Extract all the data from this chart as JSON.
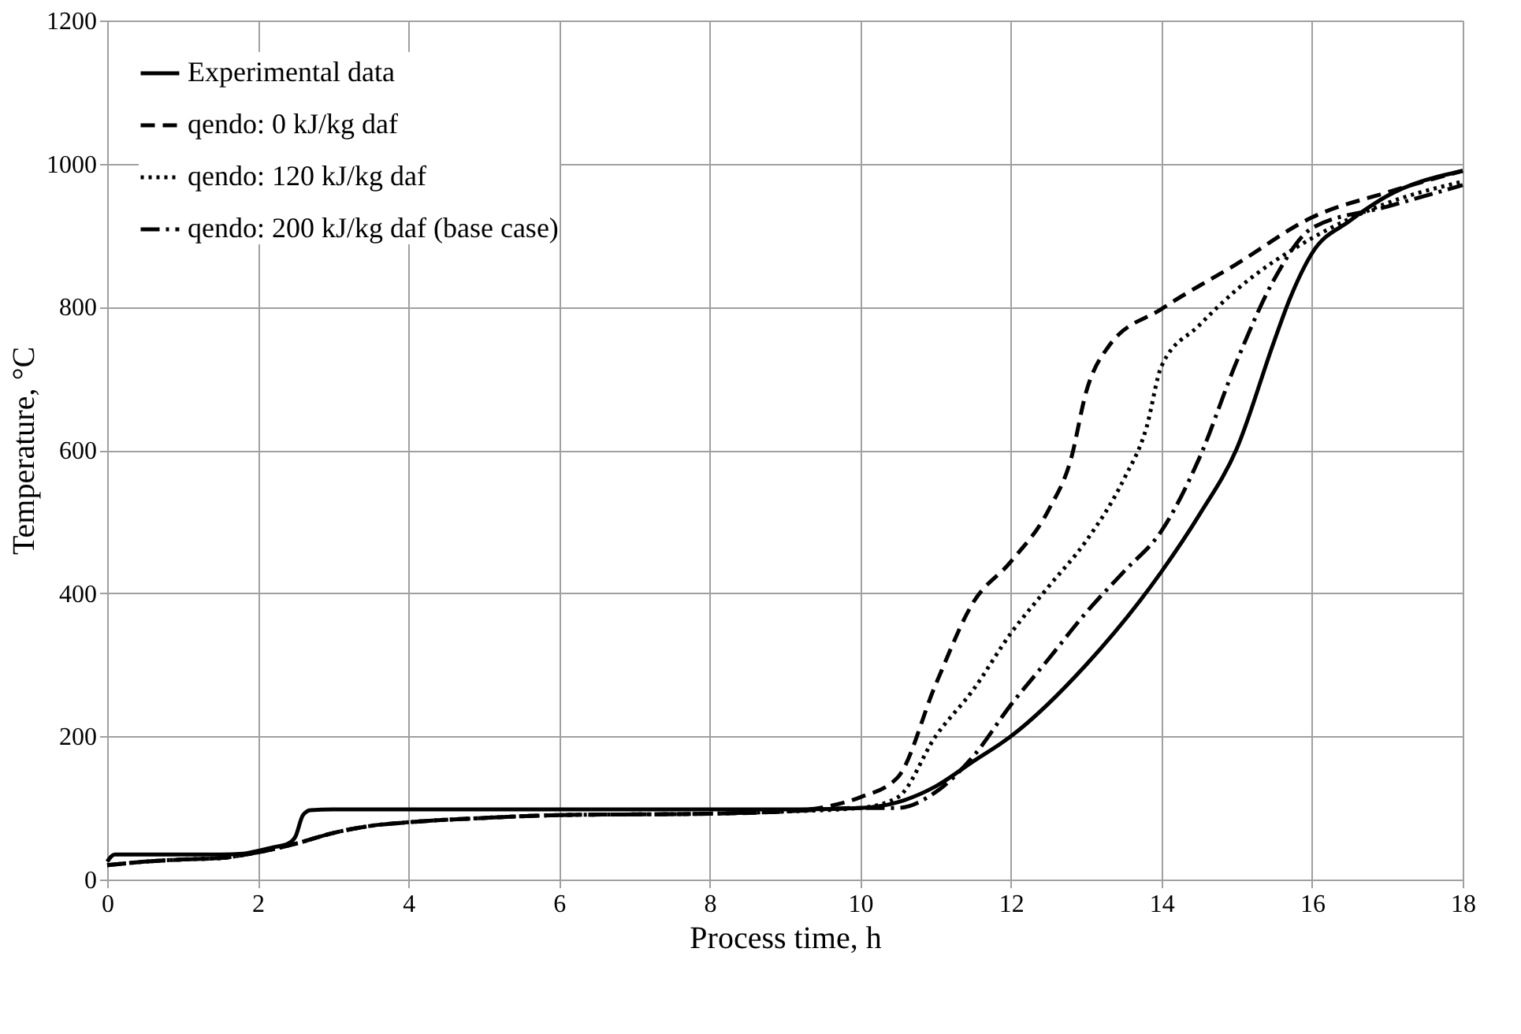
{
  "chart_data": {
    "type": "line",
    "xlabel": "Process time, h",
    "ylabel": "Temperature, °C",
    "xlim": [
      0,
      18
    ],
    "xticks": [
      0,
      2,
      4,
      6,
      8,
      10,
      12,
      14,
      16,
      18
    ],
    "ylim": [
      0,
      1200
    ],
    "yticks": [
      0,
      200,
      400,
      600,
      800,
      1000,
      1200
    ],
    "grid": true,
    "legend": "top left",
    "marker": "none",
    "series": [
      {
        "name": "Experimental data",
        "color": "#000000",
        "line_style": "solid",
        "x": [
          0,
          0.1,
          0.5,
          1,
          1.5,
          1.8,
          2,
          2.2,
          2.4,
          2.5,
          2.6,
          2.7,
          3,
          4,
          6,
          8,
          9,
          10,
          10.5,
          11,
          11.5,
          12,
          13,
          14,
          14.5,
          15,
          15.5,
          15.7,
          16,
          16.5,
          17,
          18
        ],
        "values": [
          25,
          35,
          35,
          35,
          35,
          36,
          40,
          45,
          50,
          60,
          90,
          97,
          98,
          98,
          98,
          98,
          98,
          100,
          108,
          130,
          165,
          200,
          300,
          430,
          509,
          602,
          753,
          810,
          875,
          920,
          955,
          990
        ]
      },
      {
        "name": "qendo: 0 kJ/kg daf",
        "color": "#000000",
        "line_style": "dashed",
        "x": [
          0,
          0.5,
          1,
          1.5,
          2,
          2.5,
          3,
          3.5,
          4,
          5,
          6,
          8,
          9,
          10,
          10.5,
          11,
          11.5,
          12,
          12.5,
          12.8,
          13,
          13.3,
          14,
          15,
          16,
          17,
          18
        ],
        "values": [
          20,
          25,
          28,
          30,
          38,
          50,
          65,
          75,
          80,
          86,
          90,
          92,
          95,
          115,
          143,
          272,
          387,
          444,
          516,
          588,
          681,
          745,
          797,
          860,
          925,
          960,
          990
        ]
      },
      {
        "name": "qendo: 120 kJ/kg daf",
        "color": "#000000",
        "line_style": "dotted",
        "x": [
          0,
          0.5,
          1,
          1.5,
          2,
          2.5,
          3,
          3.5,
          4,
          5,
          6,
          8,
          9,
          10,
          10.5,
          11,
          11.5,
          12,
          12.5,
          13,
          13.5,
          13.8,
          14,
          14.5,
          15,
          16,
          17,
          18
        ],
        "values": [
          20,
          25,
          28,
          30,
          38,
          50,
          65,
          75,
          80,
          86,
          90,
          92,
          95,
          100,
          115,
          200,
          265,
          344,
          409,
          473,
          559,
          631,
          717,
          774,
          824,
          896,
          945,
          975
        ]
      },
      {
        "name": "qendo: 200 kJ/kg daf (base case)",
        "color": "#000000",
        "line_style": "dashdot",
        "x": [
          0,
          0.5,
          1,
          1.5,
          2,
          2.5,
          3,
          3.5,
          4,
          5,
          6,
          8,
          9,
          10,
          10.5,
          11,
          11.5,
          12,
          12.5,
          13,
          13.5,
          14,
          14.5,
          15,
          15.5,
          16,
          17,
          18
        ],
        "values": [
          20,
          25,
          28,
          30,
          38,
          50,
          65,
          75,
          80,
          86,
          90,
          92,
          95,
          100,
          100,
          122,
          172,
          244,
          308,
          373,
          430,
          487,
          588,
          724,
          839,
          910,
          940,
          970
        ]
      }
    ]
  }
}
